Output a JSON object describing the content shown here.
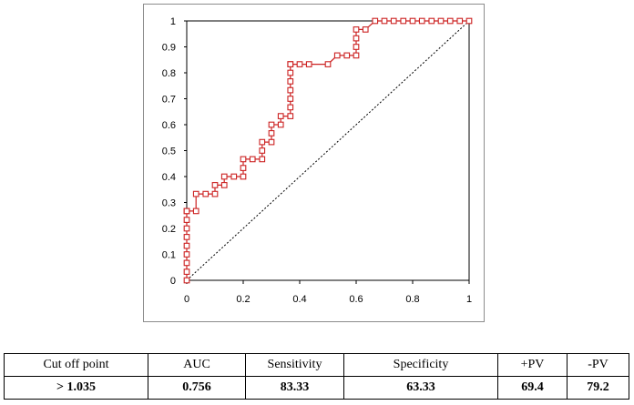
{
  "chart_data": {
    "type": "line",
    "title": "",
    "xlabel": "",
    "ylabel": "",
    "xlim": [
      0,
      1
    ],
    "ylim": [
      0,
      1
    ],
    "x_ticks": [
      "0",
      "0.2",
      "0.4",
      "0.6",
      "0.8",
      "1"
    ],
    "y_ticks": [
      "0",
      "0.1",
      "0.2",
      "0.3",
      "0.4",
      "0.5",
      "0.6",
      "0.7",
      "0.8",
      "0.9",
      "1"
    ],
    "grid": false,
    "legend": "none",
    "colors": {
      "roc": "#cc2222",
      "diagonal": "#000000",
      "frame": "#000000"
    },
    "series": [
      {
        "style": "step line with square markers",
        "x": [
          0,
          0,
          0,
          0,
          0,
          0,
          0,
          0,
          0,
          0,
          0.033,
          0.033,
          0.067,
          0.1,
          0.1,
          0.133,
          0.133,
          0.167,
          0.2,
          0.2,
          0.2,
          0.233,
          0.267,
          0.267,
          0.267,
          0.3,
          0.3,
          0.3,
          0.333,
          0.333,
          0.367,
          0.367,
          0.367,
          0.367,
          0.367,
          0.367,
          0.367,
          0.367,
          0.4,
          0.433,
          0.5,
          0.533,
          0.567,
          0.6,
          0.6,
          0.6,
          0.6,
          0.633,
          0.667,
          0.7,
          0.733,
          0.767,
          0.8,
          0.833,
          0.867,
          0.9,
          0.933,
          0.967,
          1
        ],
        "y": [
          0,
          0.033,
          0.067,
          0.1,
          0.133,
          0.167,
          0.2,
          0.233,
          0.267,
          0.267,
          0.267,
          0.333,
          0.333,
          0.333,
          0.367,
          0.367,
          0.4,
          0.4,
          0.4,
          0.433,
          0.467,
          0.467,
          0.467,
          0.5,
          0.533,
          0.533,
          0.567,
          0.6,
          0.6,
          0.633,
          0.633,
          0.667,
          0.7,
          0.733,
          0.767,
          0.8,
          0.833,
          0.833,
          0.833,
          0.833,
          0.833,
          0.867,
          0.867,
          0.867,
          0.9,
          0.933,
          0.967,
          0.967,
          1,
          1,
          1,
          1,
          1,
          1,
          1,
          1,
          1,
          1,
          1
        ]
      },
      {
        "style": "dotted diagonal reference line",
        "x": [
          0,
          1
        ],
        "y": [
          0,
          1
        ]
      }
    ]
  },
  "table": {
    "headers": [
      "Cut off point",
      "AUC",
      "Sensitivity",
      "Specificity",
      "+PV",
      "-PV"
    ],
    "values": [
      "> 1.035",
      "0.756",
      "83.33",
      "63.33",
      "69.4",
      "79.2"
    ]
  }
}
